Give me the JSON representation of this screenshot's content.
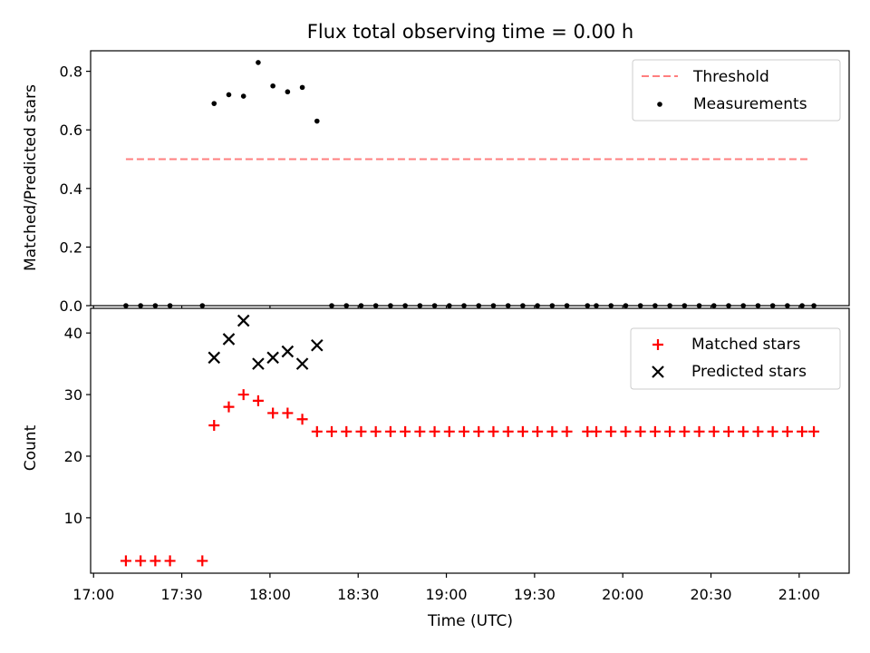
{
  "chart_data": {
    "title": "Flux total observing time = 0.00 h",
    "xlabel": "Time (UTC)",
    "x_ticks": [
      "17:00",
      "17:30",
      "18:00",
      "18:30",
      "19:00",
      "19:30",
      "20:00",
      "20:30",
      "21:00"
    ],
    "x_tick_minutes": [
      1020,
      1050,
      1080,
      1110,
      1140,
      1170,
      1200,
      1230,
      1260
    ],
    "xlim_minutes": [
      1019,
      1277
    ],
    "panels": [
      {
        "type": "line+scatter",
        "ylabel": "Matched/Predicted stars",
        "ylim": [
          0,
          0.87
        ],
        "yticks": [
          "0.0",
          "0.2",
          "0.4",
          "0.6",
          "0.8"
        ],
        "ytick_values": [
          0,
          0.2,
          0.4,
          0.6,
          0.8
        ],
        "legend_position": "top-right",
        "grid": false,
        "threshold": {
          "name": "Threshold",
          "value": 0.5,
          "x_start_minutes": 1031,
          "x_end_minutes": 1264,
          "color": "#ff7f7f"
        },
        "measurements": {
          "name": "Measurements",
          "color": "#000000",
          "points": [
            [
              1031,
              0
            ],
            [
              1036,
              0
            ],
            [
              1041,
              0
            ],
            [
              1046,
              0
            ],
            [
              1057,
              0
            ],
            [
              1061,
              0.69
            ],
            [
              1066,
              0.72
            ],
            [
              1071,
              0.715
            ],
            [
              1076,
              0.83
            ],
            [
              1081,
              0.75
            ],
            [
              1086,
              0.73
            ],
            [
              1091,
              0.745
            ],
            [
              1096,
              0.63
            ],
            [
              1101,
              0
            ],
            [
              1106,
              0
            ],
            [
              1111,
              0
            ],
            [
              1116,
              0
            ],
            [
              1121,
              0
            ],
            [
              1126,
              0
            ],
            [
              1131,
              0
            ],
            [
              1136,
              0
            ],
            [
              1141,
              0
            ],
            [
              1146,
              0
            ],
            [
              1151,
              0
            ],
            [
              1156,
              0
            ],
            [
              1161,
              0
            ],
            [
              1166,
              0
            ],
            [
              1171,
              0
            ],
            [
              1176,
              0
            ],
            [
              1181,
              0
            ],
            [
              1188,
              0
            ],
            [
              1191,
              0
            ],
            [
              1196,
              0
            ],
            [
              1201,
              0
            ],
            [
              1206,
              0
            ],
            [
              1211,
              0
            ],
            [
              1216,
              0
            ],
            [
              1221,
              0
            ],
            [
              1226,
              0
            ],
            [
              1231,
              0
            ],
            [
              1236,
              0
            ],
            [
              1241,
              0
            ],
            [
              1246,
              0
            ],
            [
              1251,
              0
            ],
            [
              1256,
              0
            ],
            [
              1261,
              0
            ],
            [
              1265,
              0
            ]
          ]
        }
      },
      {
        "type": "scatter",
        "ylabel": "Count",
        "ylim": [
          1,
          44
        ],
        "yticks": [
          "10",
          "20",
          "30",
          "40"
        ],
        "ytick_values": [
          10,
          20,
          30,
          40
        ],
        "legend_position": "top-right",
        "grid": false,
        "series": [
          {
            "name": "Matched stars",
            "marker": "+",
            "color": "#ff0000",
            "points": [
              [
                1031,
                3
              ],
              [
                1036,
                3
              ],
              [
                1041,
                3
              ],
              [
                1046,
                3
              ],
              [
                1057,
                3
              ],
              [
                1061,
                25
              ],
              [
                1066,
                28
              ],
              [
                1071,
                30
              ],
              [
                1076,
                29
              ],
              [
                1081,
                27
              ],
              [
                1086,
                27
              ],
              [
                1091,
                26
              ],
              [
                1096,
                24
              ],
              [
                1101,
                24
              ],
              [
                1106,
                24
              ],
              [
                1111,
                24
              ],
              [
                1116,
                24
              ],
              [
                1121,
                24
              ],
              [
                1126,
                24
              ],
              [
                1131,
                24
              ],
              [
                1136,
                24
              ],
              [
                1141,
                24
              ],
              [
                1146,
                24
              ],
              [
                1151,
                24
              ],
              [
                1156,
                24
              ],
              [
                1161,
                24
              ],
              [
                1166,
                24
              ],
              [
                1171,
                24
              ],
              [
                1176,
                24
              ],
              [
                1181,
                24
              ],
              [
                1188,
                24
              ],
              [
                1191,
                24
              ],
              [
                1196,
                24
              ],
              [
                1201,
                24
              ],
              [
                1206,
                24
              ],
              [
                1211,
                24
              ],
              [
                1216,
                24
              ],
              [
                1221,
                24
              ],
              [
                1226,
                24
              ],
              [
                1231,
                24
              ],
              [
                1236,
                24
              ],
              [
                1241,
                24
              ],
              [
                1246,
                24
              ],
              [
                1251,
                24
              ],
              [
                1256,
                24
              ],
              [
                1261,
                24
              ],
              [
                1265,
                24
              ]
            ]
          },
          {
            "name": "Predicted stars",
            "marker": "x",
            "color": "#000000",
            "points": [
              [
                1061,
                36
              ],
              [
                1066,
                39
              ],
              [
                1071,
                42
              ],
              [
                1076,
                35
              ],
              [
                1081,
                36
              ],
              [
                1086,
                37
              ],
              [
                1091,
                35
              ],
              [
                1096,
                38
              ]
            ]
          }
        ]
      }
    ]
  }
}
